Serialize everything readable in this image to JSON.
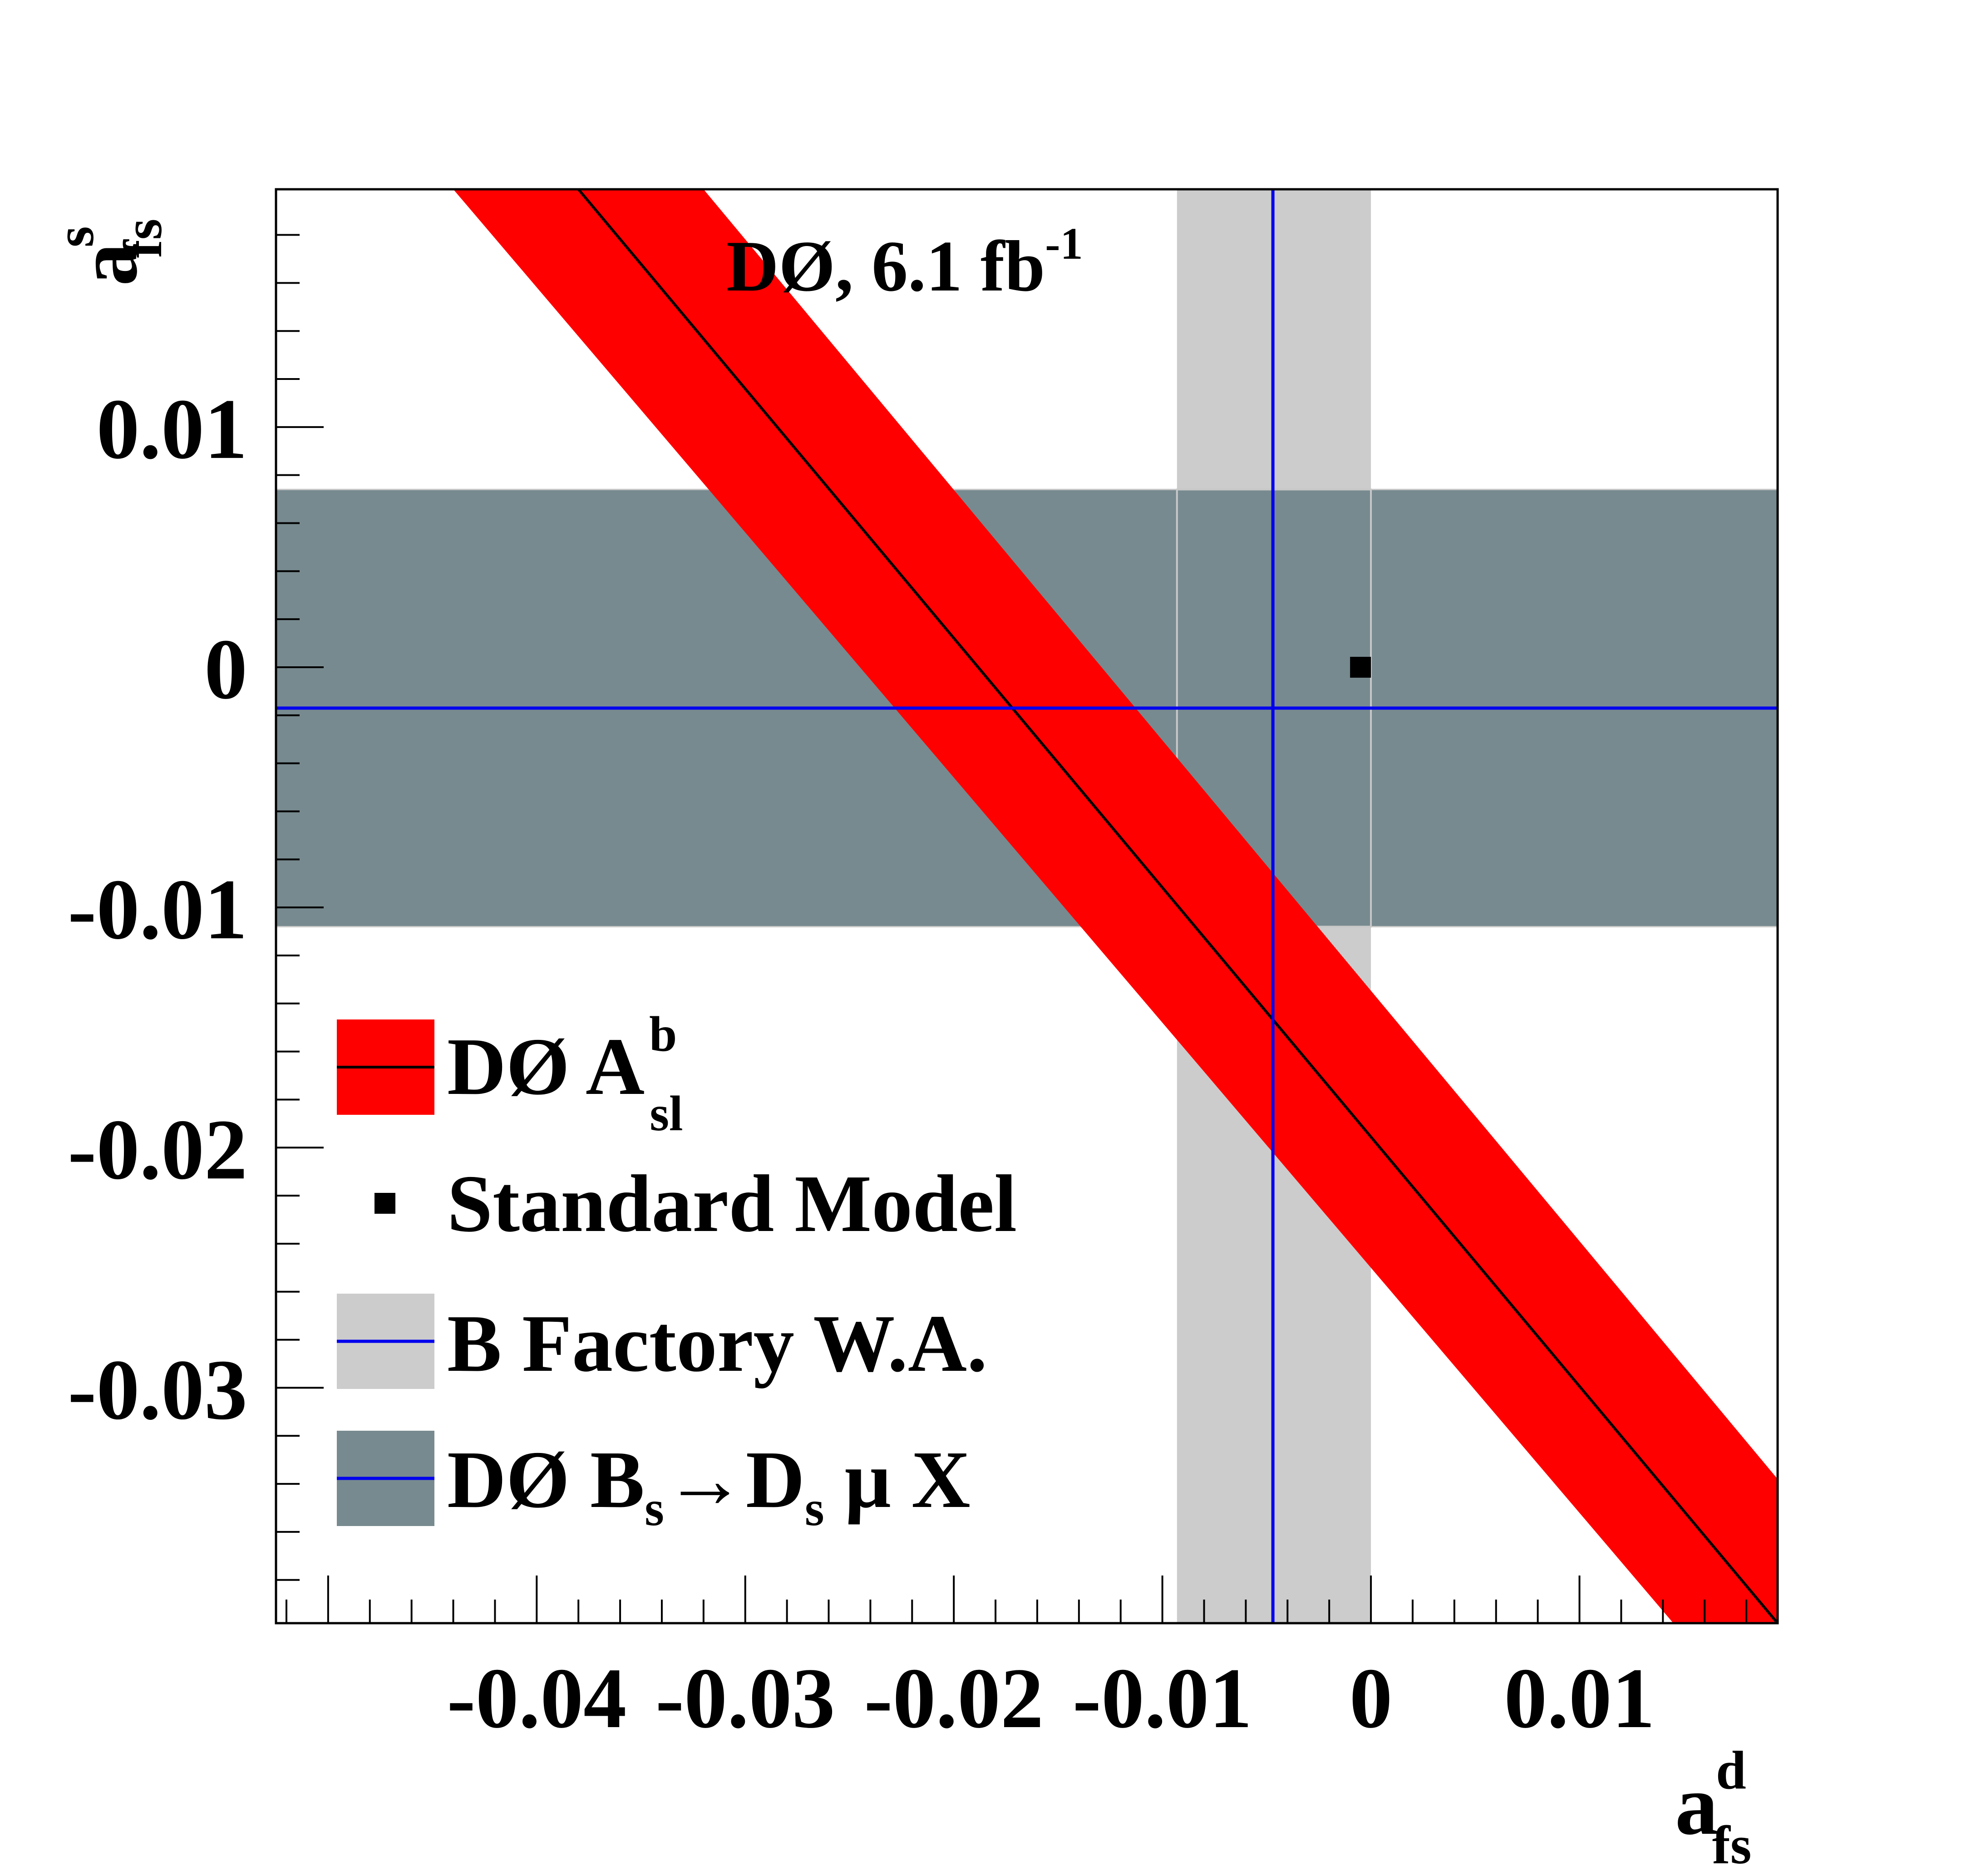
{
  "chart_data": {
    "type": "area",
    "title": "DØ, 6.1 fb",
    "title_sup": "-1",
    "xlabel": {
      "base": "a",
      "sup": "d",
      "sub": "fs"
    },
    "ylabel": {
      "base": "a",
      "sup": "s",
      "sub": "fs"
    },
    "xlim": [
      -0.0525,
      0.0195
    ],
    "ylim": [
      -0.0398,
      0.0199
    ],
    "x_ticks": [
      {
        "value": -0.04,
        "label": "-0.04"
      },
      {
        "value": -0.03,
        "label": "-0.03"
      },
      {
        "value": -0.02,
        "label": "-0.02"
      },
      {
        "value": -0.01,
        "label": "-0.01"
      },
      {
        "value": 0,
        "label": "0"
      },
      {
        "value": 0.01,
        "label": "0.01"
      }
    ],
    "y_ticks": [
      {
        "value": 0.01,
        "label": "0.01"
      },
      {
        "value": 0,
        "label": "0"
      },
      {
        "value": -0.01,
        "label": "-0.01"
      },
      {
        "value": -0.02,
        "label": "-0.02"
      },
      {
        "value": -0.03,
        "label": "-0.03"
      }
    ],
    "grid": false,
    "legend_position": "bottom-left",
    "series": [
      {
        "key": "asl",
        "kind": "diagonal-band",
        "color": "#ff0000",
        "line_color": "#000000",
        "central_line": [
          [
            -0.038,
            0.0199
          ],
          [
            0.0195,
            -0.0398
          ]
        ],
        "band_upper": [
          [
            -0.032,
            0.0199
          ],
          [
            0.0195,
            -0.0338
          ]
        ],
        "band_lower": [
          [
            -0.044,
            0.0199
          ],
          [
            0.0145,
            -0.0398
          ]
        ]
      },
      {
        "key": "bfactory",
        "kind": "vertical-band",
        "color": "#cccccc",
        "line_color": "#0000ee",
        "center": -0.0047,
        "low": -0.0093,
        "high": 0.0
      },
      {
        "key": "bsdsmux",
        "kind": "horizontal-band",
        "color": "#778a8f",
        "line_color": "#0000ee",
        "center": -0.0017,
        "low": -0.0108,
        "high": 0.0074
      },
      {
        "key": "sm",
        "kind": "point",
        "color": "#000000",
        "x": -0.0005,
        "y": 0.0
      }
    ],
    "legend": [
      {
        "key": "asl",
        "label": "DØ A",
        "sup": "b",
        "sub": "sl"
      },
      {
        "key": "sm",
        "label": "Standard Model"
      },
      {
        "key": "bfactory",
        "label": "B Factory W.A."
      },
      {
        "key": "bsdsmux",
        "label": "DØ B",
        "sub": "s",
        "rest": "→D",
        "sub2": "s",
        "tail": " μ X"
      }
    ]
  }
}
